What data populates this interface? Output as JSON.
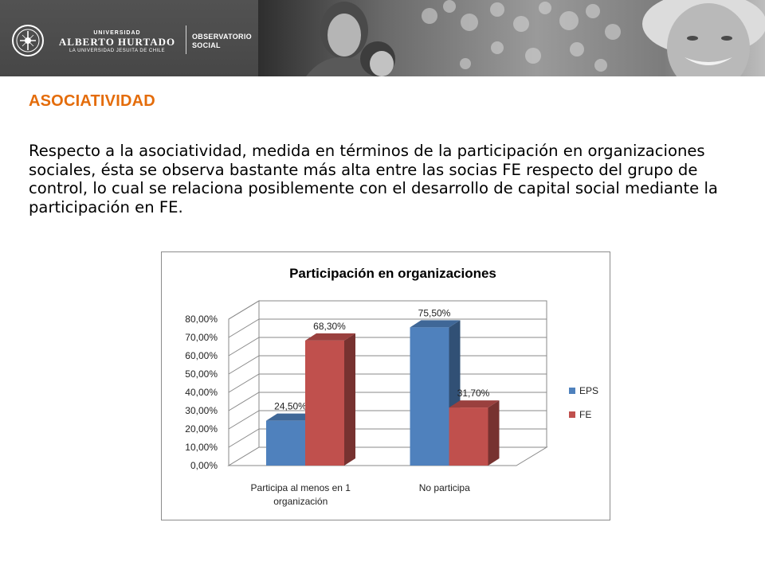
{
  "header": {
    "university_line1": "UNIVERSIDAD",
    "university_line2": "ALBERTO HURTADO",
    "university_line3": "LA UNIVERSIDAD JESUITA DE CHILE",
    "observatory_line1": "OBSERVATORIO",
    "observatory_line2": "SOCIAL"
  },
  "section_title": "ASOCIATIVIDAD",
  "body_text": "Respecto a la asociatividad, medida en términos de la participación en organizaciones sociales, ésta se observa bastante más alta entre las socias FE respecto del grupo de control, lo cual se relaciona posiblemente con el desarrollo de capital social mediante la participación en FE.",
  "colors": {
    "title_accent": "#e46c0a",
    "eps": "#4f81bd",
    "fe": "#c0504d"
  },
  "chart_data": {
    "type": "bar",
    "title": "Participación en organizaciones",
    "categories": [
      "Participa al menos en 1 organización",
      "No participa"
    ],
    "category_lines": [
      [
        "Participa al menos en 1",
        "organización"
      ],
      [
        "No participa"
      ]
    ],
    "series": [
      {
        "name": "EPS",
        "values": [
          24.5,
          75.5
        ],
        "labels": [
          "24,50%",
          "75,50%"
        ]
      },
      {
        "name": "FE",
        "values": [
          68.3,
          31.7
        ],
        "labels": [
          "68,30%",
          "31,70%"
        ]
      }
    ],
    "ylim": [
      0,
      80
    ],
    "yticks": [
      "0,00%",
      "10,00%",
      "20,00%",
      "30,00%",
      "40,00%",
      "50,00%",
      "60,00%",
      "70,00%",
      "80,00%"
    ],
    "style": "3d-clustered",
    "grid": true,
    "legend_position": "right"
  }
}
